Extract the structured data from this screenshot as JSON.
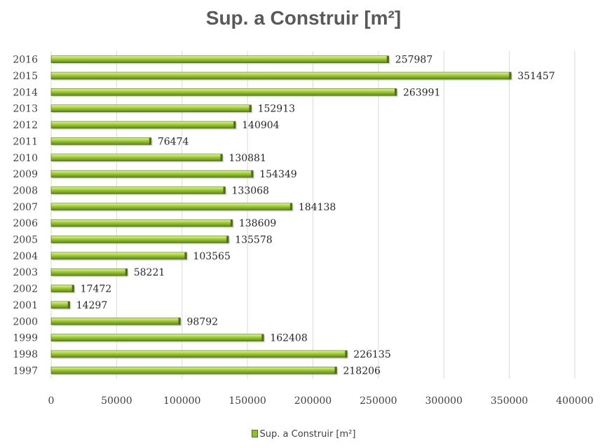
{
  "chart_data": {
    "type": "bar",
    "orientation": "horizontal",
    "title": "Sup. a Construir [m²]",
    "xlabel": "",
    "ylabel": "",
    "categories": [
      "1997",
      "1998",
      "1999",
      "2000",
      "2001",
      "2002",
      "2003",
      "2004",
      "2005",
      "2006",
      "2007",
      "2008",
      "2009",
      "2010",
      "2011",
      "2012",
      "2013",
      "2014",
      "2015",
      "2016"
    ],
    "series": [
      {
        "name": "Sup. a Construir [m²]",
        "values": [
          218206,
          226135,
          162408,
          98792,
          14297,
          17472,
          58221,
          103565,
          135578,
          138609,
          184138,
          133068,
          154349,
          130881,
          76474,
          140904,
          152913,
          263991,
          351457,
          257987
        ]
      }
    ],
    "xlim": [
      0,
      400000
    ],
    "xticks": [
      "0",
      "50000",
      "100000",
      "150000",
      "200000",
      "250000",
      "300000",
      "350000",
      "400000"
    ],
    "grid": true,
    "legend": "bottom",
    "colors": {
      "bar": "#8fbf2a",
      "bar_light": "#d6ef8a",
      "bar_dark": "#4e6f12",
      "grid": "#d9d9d9"
    }
  }
}
